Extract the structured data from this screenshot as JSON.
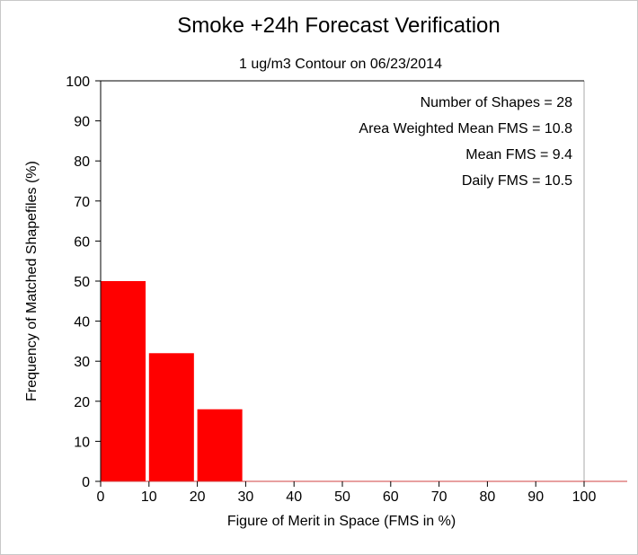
{
  "chart_data": {
    "type": "bar",
    "title": "Smoke +24h Forecast Verification",
    "subtitle": "1 ug/m3 Contour on 06/23/2014",
    "xlabel": "Figure of Merit in Space (FMS in %)",
    "ylabel": "Frequency of Matched Shapefiles (%)",
    "xlim": [
      0,
      100
    ],
    "ylim": [
      0,
      100
    ],
    "xticks": [
      0,
      10,
      20,
      30,
      40,
      50,
      60,
      70,
      80,
      90,
      100
    ],
    "yticks": [
      0,
      10,
      20,
      30,
      40,
      50,
      60,
      70,
      80,
      90,
      100
    ],
    "bins": [
      {
        "from": 0,
        "to": 9,
        "value": 50
      },
      {
        "from": 10,
        "to": 19,
        "value": 32
      },
      {
        "from": 20,
        "to": 29,
        "value": 18
      },
      {
        "from": 30,
        "to": 39,
        "value": 0
      },
      {
        "from": 40,
        "to": 49,
        "value": 0
      },
      {
        "from": 50,
        "to": 59,
        "value": 0
      },
      {
        "from": 60,
        "to": 69,
        "value": 0
      },
      {
        "from": 70,
        "to": 79,
        "value": 0
      },
      {
        "from": 80,
        "to": 89,
        "value": 0
      },
      {
        "from": 90,
        "to": 99,
        "value": 0
      },
      {
        "from": 100,
        "to": 109,
        "value": 0
      }
    ],
    "bar_color": "#ff0000",
    "grid": false,
    "annotations": [
      "Number of Shapes = 28",
      "Area Weighted Mean FMS = 10.8",
      "Mean FMS = 9.4",
      "Daily FMS = 10.5"
    ],
    "annotation_placement": "top-right"
  }
}
